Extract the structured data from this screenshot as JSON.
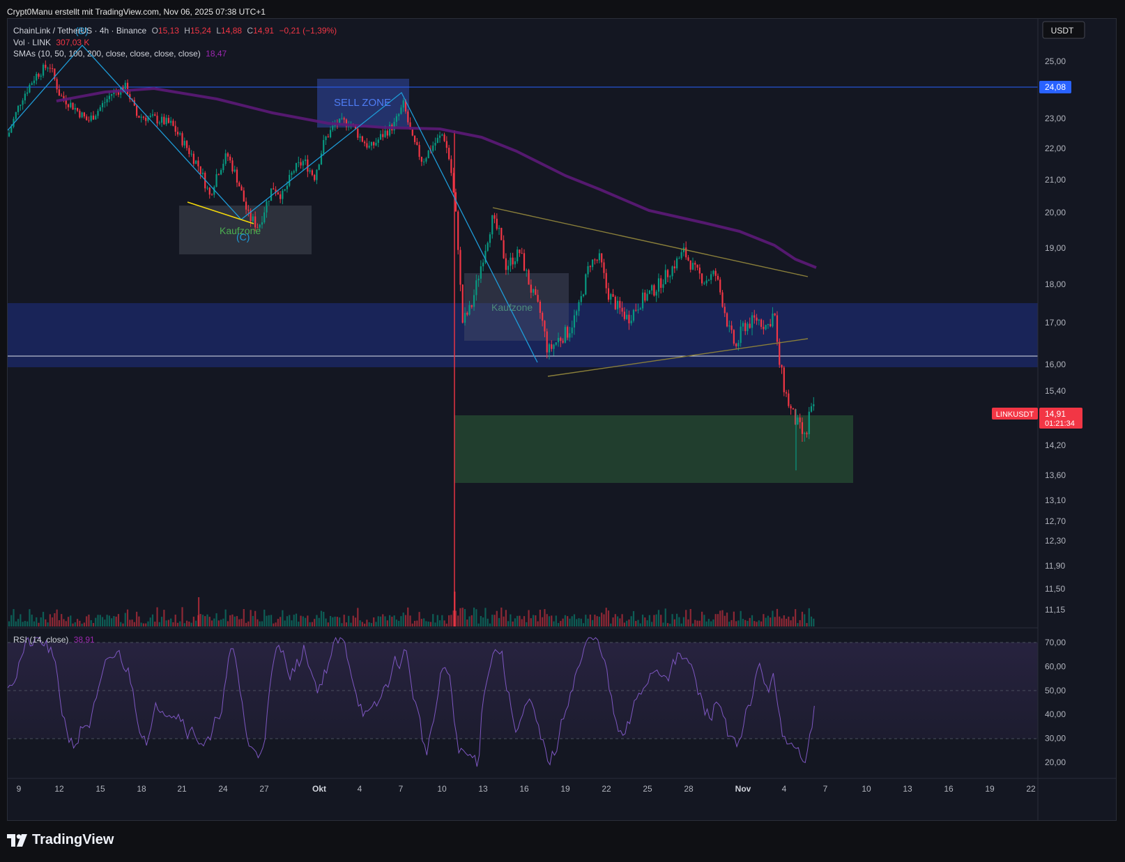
{
  "caption": "Crypt0Manu erstellt mit TradingView.com, Nov 06, 2025 07:38 UTC+1",
  "legend": {
    "symbol": "ChainLink / TetherUS · 4h · Binance",
    "o_label": "O",
    "o": "15,13",
    "h_label": "H",
    "h": "15,24",
    "l_label": "L",
    "l": "14,88",
    "c_label": "C",
    "c": "14,91",
    "change": "−0,21 (−1,39%)",
    "vol_label": "Vol · LINK",
    "vol": "307,03 K",
    "sma_label": "SMAs (10, 50, 100, 200, close, close, close, close)",
    "sma_value": "18,47",
    "rsi_label": "RSI (14, close)",
    "rsi_value": "38,91"
  },
  "currency_button": "USDT",
  "price_axis": {
    "ticks": [
      "25,00",
      "23,00",
      "22,00",
      "21,00",
      "20,00",
      "19,00",
      "18,00",
      "17,00",
      "16,00",
      "15,40",
      "14,20",
      "13,60",
      "13,10",
      "12,70",
      "12,30",
      "11,90",
      "11,50",
      "11,15"
    ],
    "level_tag": "24,08",
    "last_symbol": "LINKUSDT",
    "last_price": "14,91",
    "countdown": "01:21:34"
  },
  "rsi_axis": {
    "ticks": [
      "70,00",
      "60,00",
      "50,00",
      "40,00",
      "30,00",
      "20,00"
    ]
  },
  "time_axis": {
    "ticks": [
      "9",
      "12",
      "15",
      "18",
      "21",
      "24",
      "27",
      "Okt",
      "4",
      "7",
      "10",
      "13",
      "16",
      "19",
      "22",
      "25",
      "28",
      "Nov",
      "4",
      "7",
      "10",
      "13",
      "16",
      "19",
      "22"
    ]
  },
  "annotations": {
    "sell_zone": "SELL ZONE",
    "buy_zone_1": "Kaufzone",
    "buy_zone_2": "Kaufzone",
    "wave_b": "(B)",
    "wave_c": "(C)"
  },
  "brand": "TradingView",
  "colors": {
    "up": "#089981",
    "down": "#f23645",
    "sma200": "#5c1a78",
    "wave_line": "#1e9bd7",
    "level_line": "#2962ff",
    "blue_zone": "#1b2a6b",
    "green_zone": "#22402f",
    "rsi_line": "#7e57c2"
  }
}
